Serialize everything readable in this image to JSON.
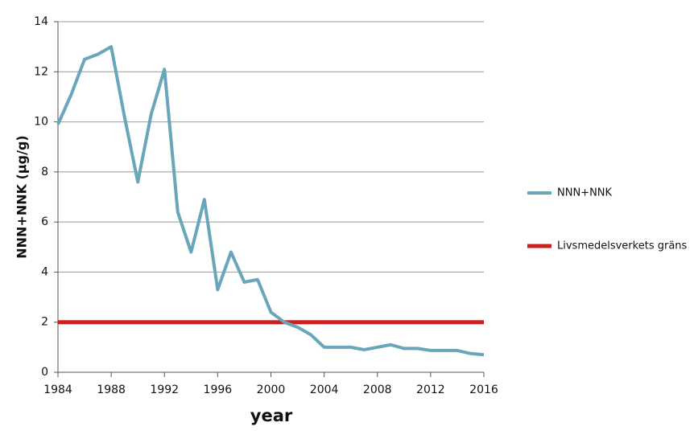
{
  "chart_data": {
    "type": "line",
    "x": [
      1984,
      1985,
      1986,
      1987,
      1988,
      1989,
      1990,
      1991,
      1992,
      1993,
      1994,
      1995,
      1996,
      1997,
      1998,
      1999,
      2000,
      2001,
      2002,
      2003,
      2004,
      2005,
      2006,
      2007,
      2008,
      2009,
      2010,
      2011,
      2012,
      2013,
      2014,
      2015,
      2016
    ],
    "series": [
      {
        "name": "NNN+NNK",
        "color": "#6aa6bb",
        "values": [
          9.9,
          11.1,
          12.5,
          12.7,
          13.0,
          10.2,
          7.6,
          10.3,
          12.1,
          6.4,
          4.8,
          6.9,
          3.3,
          4.8,
          3.6,
          3.7,
          2.4,
          2.0,
          1.8,
          1.5,
          1.0,
          1.0,
          1.0,
          0.9,
          1.0,
          1.1,
          0.95,
          0.95,
          0.87,
          0.87,
          0.87,
          0.75,
          0.7
        ]
      },
      {
        "name": "Livsmedelsverkets gräns",
        "color": "#cc1f1f",
        "values": [
          2,
          2,
          2,
          2,
          2,
          2,
          2,
          2,
          2,
          2,
          2,
          2,
          2,
          2,
          2,
          2,
          2,
          2,
          2,
          2,
          2,
          2,
          2,
          2,
          2,
          2,
          2,
          2,
          2,
          2,
          2,
          2,
          2
        ]
      }
    ],
    "x_label": "year",
    "y_label": "NNN+NNK  (µg/g)",
    "xlim": [
      1984,
      2016
    ],
    "xticks": [
      1984,
      1988,
      1992,
      1996,
      2000,
      2004,
      2008,
      2012,
      2016
    ],
    "ylim": [
      0,
      14
    ],
    "yticks": [
      0,
      2,
      4,
      6,
      8,
      10,
      12,
      14
    ],
    "grid": true
  }
}
